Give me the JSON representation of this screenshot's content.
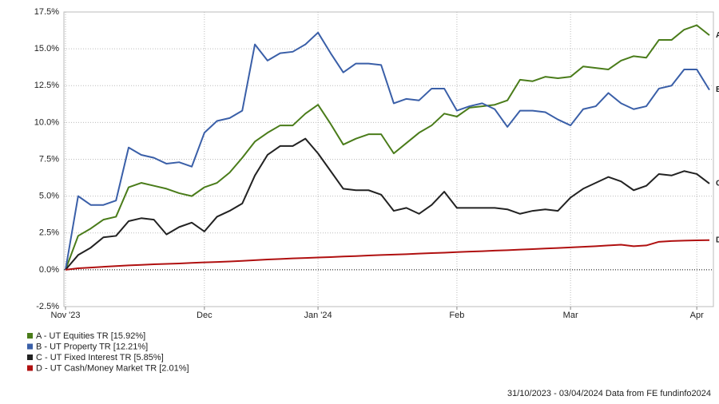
{
  "chart_data": {
    "type": "line",
    "categories": [
      "Nov '23",
      null,
      null,
      null,
      null,
      null,
      null,
      null,
      null,
      null,
      null,
      "Dec",
      null,
      null,
      null,
      null,
      null,
      null,
      null,
      null,
      "Jan '24",
      null,
      null,
      null,
      null,
      null,
      null,
      null,
      null,
      null,
      null,
      "Feb",
      null,
      null,
      null,
      null,
      null,
      null,
      null,
      null,
      "Mar",
      null,
      null,
      null,
      null,
      null,
      null,
      null,
      null,
      null,
      "Apr",
      null
    ],
    "series": [
      {
        "name": "A - UT Equities TR [15.92%]",
        "label": "A",
        "color": "#4a7c1a",
        "values": [
          0,
          2.3,
          2.8,
          3.4,
          3.6,
          5.6,
          5.9,
          5.7,
          5.5,
          5.2,
          5.0,
          5.6,
          5.9,
          6.6,
          7.6,
          8.7,
          9.3,
          9.8,
          9.8,
          10.6,
          11.2,
          9.9,
          8.5,
          8.9,
          9.2,
          9.2,
          7.9,
          8.6,
          9.3,
          9.8,
          10.6,
          10.4,
          11.0,
          11.1,
          11.2,
          11.5,
          12.9,
          12.8,
          13.1,
          13.0,
          13.1,
          13.8,
          13.7,
          13.6,
          14.2,
          14.5,
          14.4,
          15.6,
          15.6,
          16.3,
          16.6,
          15.92
        ]
      },
      {
        "name": "B - UT Property TR [12.21%]",
        "label": "B",
        "color": "#3a5fa8",
        "values": [
          0,
          5.0,
          4.4,
          4.4,
          4.7,
          8.3,
          7.8,
          7.6,
          7.2,
          7.3,
          7.0,
          9.3,
          10.1,
          10.3,
          10.8,
          15.3,
          14.2,
          14.7,
          14.8,
          15.3,
          16.1,
          14.7,
          13.4,
          14.0,
          14.0,
          13.9,
          11.3,
          11.6,
          11.5,
          12.3,
          12.3,
          10.8,
          11.1,
          11.3,
          10.9,
          9.7,
          10.8,
          10.8,
          10.7,
          10.2,
          9.8,
          10.9,
          11.1,
          12.0,
          11.3,
          10.9,
          11.1,
          12.3,
          12.5,
          13.6,
          13.6,
          12.21
        ]
      },
      {
        "name": "C - UT Fixed Interest TR [5.85%]",
        "label": "C",
        "color": "#222222",
        "values": [
          0,
          1.0,
          1.5,
          2.2,
          2.3,
          3.3,
          3.5,
          3.4,
          2.4,
          2.9,
          3.2,
          2.6,
          3.6,
          4.0,
          4.5,
          6.4,
          7.8,
          8.4,
          8.4,
          8.9,
          7.9,
          6.7,
          5.5,
          5.4,
          5.4,
          5.1,
          4.0,
          4.2,
          3.8,
          4.4,
          5.3,
          4.2,
          4.2,
          4.2,
          4.2,
          4.1,
          3.8,
          4.0,
          4.1,
          4.0,
          4.9,
          5.5,
          5.9,
          6.3,
          6.0,
          5.4,
          5.7,
          6.5,
          6.4,
          6.7,
          6.5,
          5.85
        ]
      },
      {
        "name": "D - UT Cash/Money Market TR [2.01%]",
        "label": "D",
        "color": "#b01010",
        "values": [
          0,
          0.1,
          0.15,
          0.2,
          0.25,
          0.3,
          0.33,
          0.37,
          0.4,
          0.43,
          0.47,
          0.5,
          0.53,
          0.56,
          0.6,
          0.65,
          0.7,
          0.73,
          0.77,
          0.8,
          0.83,
          0.86,
          0.9,
          0.93,
          0.97,
          1.0,
          1.03,
          1.06,
          1.1,
          1.13,
          1.16,
          1.2,
          1.23,
          1.26,
          1.3,
          1.33,
          1.37,
          1.4,
          1.44,
          1.48,
          1.52,
          1.56,
          1.6,
          1.65,
          1.7,
          1.6,
          1.65,
          1.9,
          1.95,
          1.98,
          2.0,
          2.01
        ]
      }
    ],
    "ylim": [
      -2.5,
      17.5
    ],
    "yticks": [
      {
        "value": -2.5,
        "label": "-2.5%"
      },
      {
        "value": 0,
        "label": "0.0%"
      },
      {
        "value": 2.5,
        "label": "2.5%"
      },
      {
        "value": 5,
        "label": "5.0%"
      },
      {
        "value": 7.5,
        "label": "7.5%"
      },
      {
        "value": 10,
        "label": "10.0%"
      },
      {
        "value": 12.5,
        "label": "12.5%"
      },
      {
        "value": 15,
        "label": "15.0%"
      },
      {
        "value": 17.5,
        "label": "17.5%"
      }
    ],
    "grid": true,
    "footer": "31/10/2023 - 03/04/2024 Data from FE fundinfo2024"
  }
}
